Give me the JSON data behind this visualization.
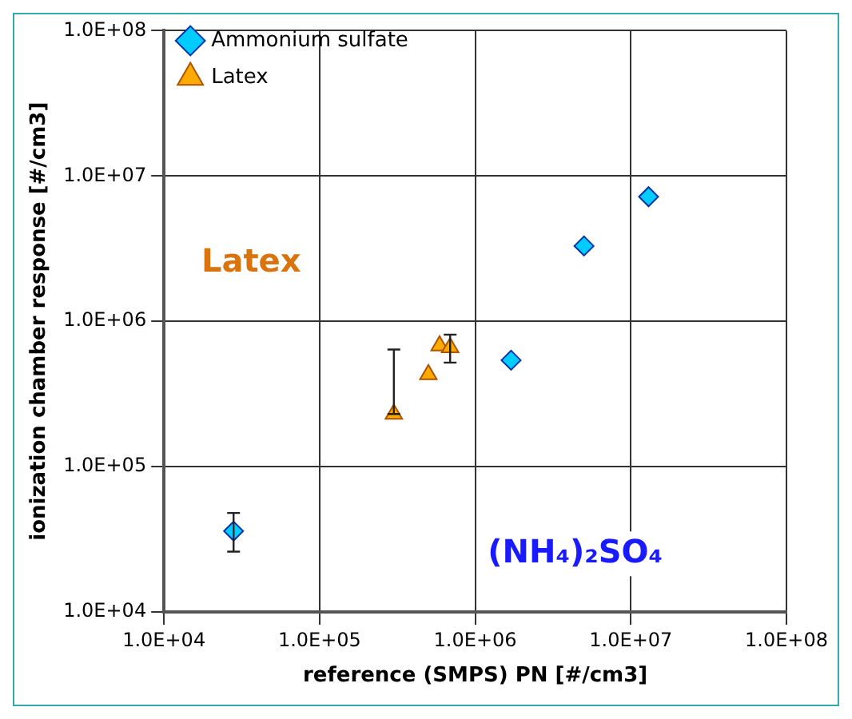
{
  "chart_data": {
    "type": "scatter",
    "xlabel": "reference (SMPS) PN [#/cm3]",
    "ylabel": "ionization chamber response [#/cm3]",
    "log": "xy",
    "grid": true,
    "legend": "top left",
    "xlim": [
      10000,
      100000000
    ],
    "ylim": [
      10000,
      100000000
    ],
    "xticks": [
      {
        "value": 10000,
        "label": "1.0E+04"
      },
      {
        "value": 100000,
        "label": "1.0E+05"
      },
      {
        "value": 1000000,
        "label": "1.0E+06"
      },
      {
        "value": 10000000,
        "label": "1.0E+07"
      },
      {
        "value": 100000000,
        "label": "1.0E+08"
      }
    ],
    "yticks": [
      {
        "value": 10000,
        "label": "1.0E+04"
      },
      {
        "value": 100000,
        "label": "1.0E+05"
      },
      {
        "value": 1000000,
        "label": "1.0E+06"
      },
      {
        "value": 10000000,
        "label": "1.0E+07"
      },
      {
        "value": 100000000,
        "label": "1.0E+08"
      }
    ],
    "series": [
      {
        "name": "Ammonium sulfate",
        "color": "#00ccff",
        "marker": "diamond",
        "x": [
          28000,
          1700000,
          5000000,
          13000000
        ],
        "values": [
          36000,
          540000,
          3300000,
          7200000
        ],
        "errors": [
          [
            26000,
            48000
          ],
          null,
          null,
          null
        ]
      },
      {
        "name": "Latex",
        "color": "#ffaa00",
        "marker": "triangle",
        "x": [
          300000,
          500000,
          590000,
          690000
        ],
        "values": [
          230000,
          430000,
          680000,
          660000
        ],
        "errors": [
          [
            230000,
            640000
          ],
          null,
          null,
          [
            520000,
            810000
          ]
        ]
      }
    ],
    "annotations": [
      "Latex",
      "(NH₄)₂SO₄"
    ]
  }
}
